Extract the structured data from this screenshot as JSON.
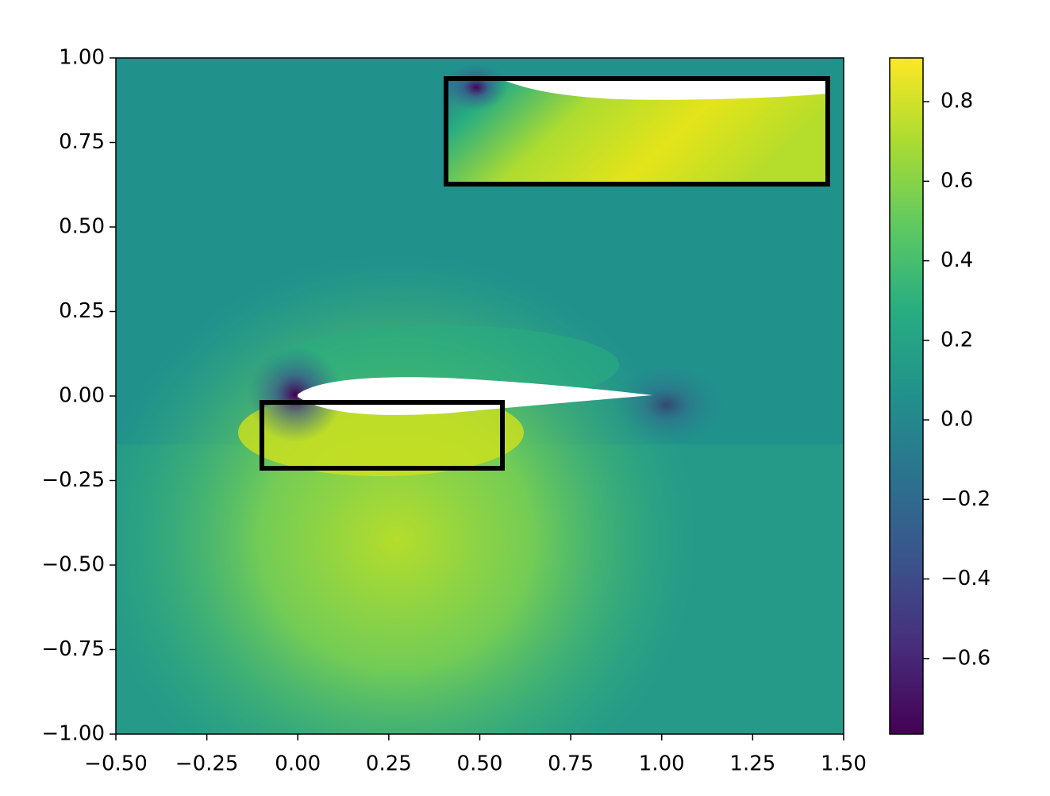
{
  "chart_data": {
    "type": "field",
    "xlim": [
      -0.5,
      1.5
    ],
    "xticks": [
      {
        "value": -0.5,
        "label": "−0.50"
      },
      {
        "value": -0.25,
        "label": "−0.25"
      },
      {
        "value": 0,
        "label": "0.00"
      },
      {
        "value": 0.25,
        "label": "0.25"
      },
      {
        "value": 0.5,
        "label": "0.50"
      },
      {
        "value": 0.75,
        "label": "0.75"
      },
      {
        "value": 1,
        "label": "1.00"
      },
      {
        "value": 1.25,
        "label": "1.25"
      },
      {
        "value": 1.5,
        "label": "1.50"
      }
    ],
    "ylim": [
      -1,
      1
    ],
    "yticks": [
      {
        "value": -1,
        "label": "−1.00"
      },
      {
        "value": -0.75,
        "label": "−0.75"
      },
      {
        "value": -0.5,
        "label": "−0.50"
      },
      {
        "value": -0.25,
        "label": "−0.25"
      },
      {
        "value": 0,
        "label": "0.00"
      },
      {
        "value": 0.25,
        "label": "0.25"
      },
      {
        "value": 0.5,
        "label": "0.50"
      },
      {
        "value": 0.75,
        "label": "0.75"
      },
      {
        "value": 1,
        "label": "1.00"
      }
    ],
    "colorbar": {
      "clim": [
        -0.79,
        0.91
      ],
      "colormap": "viridis",
      "ticks": [
        {
          "value": -0.6,
          "label": "−0.6"
        },
        {
          "value": -0.4,
          "label": "−0.4"
        },
        {
          "value": -0.2,
          "label": "−0.2"
        },
        {
          "value": 0,
          "label": "0.0"
        },
        0.2,
        0.4,
        0.6,
        0.8
      ]
    }
  }
}
